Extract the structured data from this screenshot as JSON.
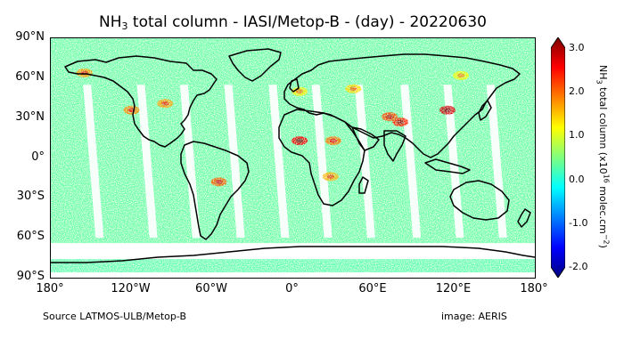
{
  "title": {
    "prefix": "NH",
    "sub": "3",
    "rest": " total column - IASI/Metop-B - (day)  - 20220630"
  },
  "axes": {
    "lat_ticks": [
      {
        "value": 90,
        "label": "90°N"
      },
      {
        "value": 60,
        "label": "60°N"
      },
      {
        "value": 30,
        "label": "30°N"
      },
      {
        "value": 0,
        "label": "0°"
      },
      {
        "value": -30,
        "label": "30°S"
      },
      {
        "value": -60,
        "label": "60°S"
      },
      {
        "value": -90,
        "label": "90°S"
      }
    ],
    "lon_ticks": [
      {
        "value": -180,
        "label": "180°"
      },
      {
        "value": -120,
        "label": "120°W"
      },
      {
        "value": -60,
        "label": "60°W"
      },
      {
        "value": 0,
        "label": "0°"
      },
      {
        "value": 60,
        "label": "60°E"
      },
      {
        "value": 120,
        "label": "120°E"
      },
      {
        "value": 180,
        "label": "180°"
      }
    ]
  },
  "colorbar": {
    "min": -2.0,
    "max": 3.0,
    "tick_labels": [
      "3.0",
      "2.0",
      "1.0",
      "0.0",
      "-1.0",
      "-2.0"
    ],
    "tick_values": [
      3.0,
      2.0,
      1.0,
      0.0,
      -1.0,
      -2.0
    ],
    "title_prefix": "NH",
    "title_sub": "3",
    "title_mid": " total column (x10",
    "title_sup": "16",
    "title_unit": " molec.cm",
    "title_sup2": "−2",
    "title_end": ")",
    "colors": [
      "#00007f",
      "#0000ff",
      "#007fff",
      "#00ffff",
      "#7fff7f",
      "#ffff00",
      "#ff7f00",
      "#ff0000",
      "#7f0000"
    ]
  },
  "footer": {
    "source": "Source LATMOS-ULB/Metop-B",
    "image": "image: AERIS"
  },
  "hotspots": [
    {
      "region": "north-china-plain",
      "lon": 115,
      "lat": 36,
      "value": 2.6
    },
    {
      "region": "indo-gangetic-plain",
      "lon": 80,
      "lat": 27,
      "value": 2.2
    },
    {
      "region": "pakistan",
      "lon": 72,
      "lat": 31,
      "value": 2.0
    },
    {
      "region": "sahel-west",
      "lon": 5,
      "lat": 13,
      "value": 2.4
    },
    {
      "region": "sudan",
      "lon": 30,
      "lat": 13,
      "value": 1.8
    },
    {
      "region": "us-midwest",
      "lon": -95,
      "lat": 41,
      "value": 1.6
    },
    {
      "region": "california",
      "lon": -120,
      "lat": 36,
      "value": 1.7
    },
    {
      "region": "western-europe",
      "lon": 5,
      "lat": 50,
      "value": 1.2
    },
    {
      "region": "russia-west",
      "lon": 45,
      "lat": 52,
      "value": 1.3
    },
    {
      "region": "brazil-south",
      "lon": -55,
      "lat": -18,
      "value": 1.9
    },
    {
      "region": "southern-africa",
      "lon": 28,
      "lat": -14,
      "value": 1.5
    },
    {
      "region": "east-siberia",
      "lon": 125,
      "lat": 62,
      "value": 1.1
    },
    {
      "region": "alaska",
      "lon": -155,
      "lat": 64,
      "value": 1.6
    }
  ]
}
